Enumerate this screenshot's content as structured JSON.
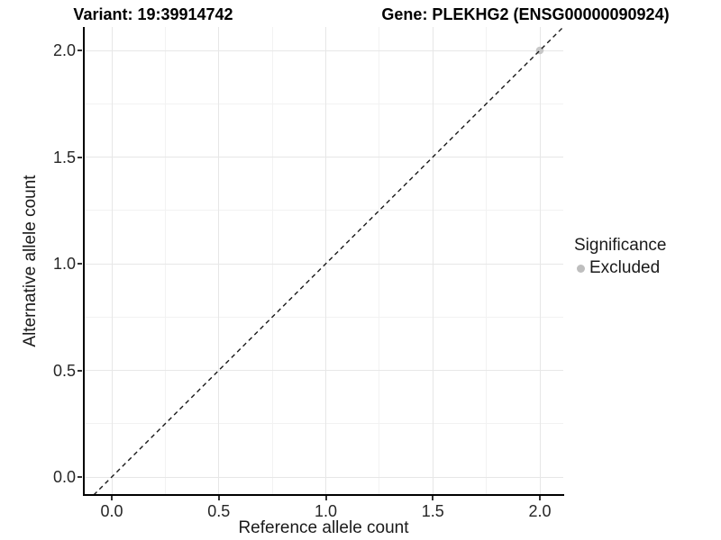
{
  "title": {
    "variant": "Variant: 19:39914742",
    "gene": "Gene: PLEKHG2 (ENSG00000090924)"
  },
  "chart_data": {
    "type": "scatter",
    "title": "Variant: 19:39914742   Gene: PLEKHG2 (ENSG00000090924)",
    "xlabel": "Reference allele count",
    "ylabel": "Alternative allele count",
    "xlim": [
      -0.13,
      2.11
    ],
    "ylim": [
      -0.09,
      2.11
    ],
    "x_ticks": [
      0.0,
      0.5,
      1.0,
      1.5,
      2.0
    ],
    "y_ticks": [
      0.0,
      0.5,
      1.0,
      1.5,
      2.0
    ],
    "grid": {
      "major": [
        0,
        0.5,
        1,
        1.5,
        2
      ],
      "minor": [
        0.25,
        0.75,
        1.25,
        1.75
      ],
      "major_color": "#e7e7e7",
      "minor_color": "#f2f2f2"
    },
    "series": [
      {
        "name": "Excluded",
        "color": "#c4c4c4",
        "points": [
          {
            "x": 2.0,
            "y": 2.0
          }
        ]
      }
    ],
    "reference_line": {
      "slope": 1,
      "intercept": 0,
      "style": "dashed",
      "color": "#1a1a1a"
    },
    "legend": {
      "title": "Significance",
      "position": "right",
      "entries": [
        {
          "label": "Excluded",
          "color": "#bebebe"
        }
      ]
    }
  },
  "colors": {
    "axis": "#000000",
    "tick_text": "#262626",
    "background": "#ffffff"
  }
}
